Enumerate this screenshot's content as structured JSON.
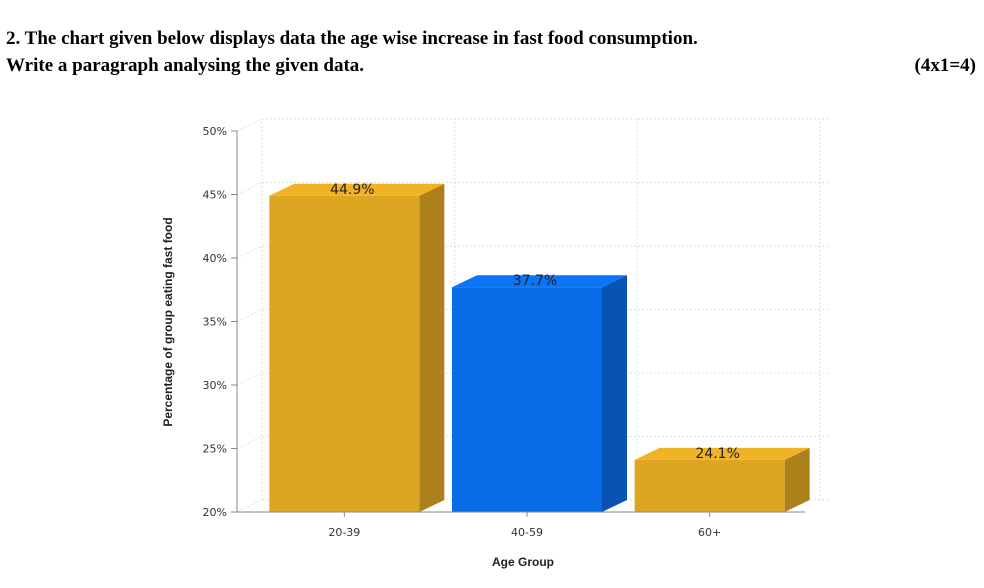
{
  "question": {
    "line1": "2.  The chart given below displays data the age wise increase in fast food consumption.",
    "line2": "Write a paragraph analysing the given data.",
    "marks": "(4x1=4)"
  },
  "chart_data": {
    "type": "bar",
    "categories": [
      "20-39",
      "40-59",
      "60+"
    ],
    "values": [
      44.9,
      37.7,
      24.1
    ],
    "data_labels": [
      "44.9%",
      "37.7%",
      "24.1%"
    ],
    "colors": [
      "#DDA622",
      "#0A6BE6",
      "#DDA622"
    ],
    "xlabel": "Age Group",
    "ylabel": "Percentage of group eating fast food",
    "ylim": [
      20,
      50
    ],
    "yticks": [
      "20%",
      "25%",
      "30%",
      "35%",
      "40%",
      "45%",
      "50%"
    ],
    "grid": true,
    "style": "3d"
  }
}
